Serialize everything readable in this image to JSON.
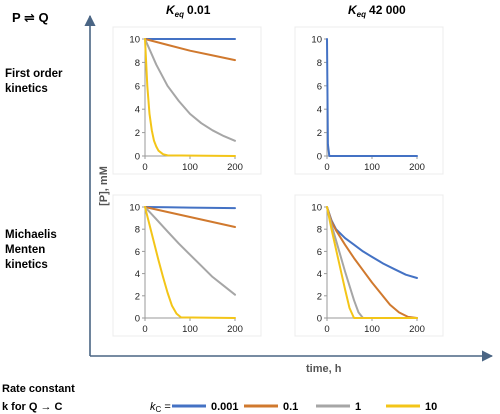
{
  "title": "P ⇌ Q",
  "column_headers": [
    {
      "prefix": "K",
      "sub": "eq",
      "value": "0.01"
    },
    {
      "prefix": "K",
      "sub": "eq",
      "value": "42 000"
    }
  ],
  "row_labels": [
    [
      "First order",
      "kinetics"
    ],
    [
      "Michaelis",
      "Menten",
      "kinetics"
    ]
  ],
  "y_axis_label": "[P], mM",
  "x_axis_label": "time, h",
  "footer": {
    "line1": "Rate constant",
    "line2": "k for Q → C",
    "kc_label_prefix": "k",
    "kc_label_sub": "C",
    "kc_label_suffix": " ="
  },
  "colors": {
    "kc_0.001": "#4472c4",
    "kc_0.1": "#d0792e",
    "kc_1": "#a6a6a6",
    "kc_10": "#f3c518",
    "axis_arrow": "#4a6584",
    "panel_axis": "#9a9a9a"
  },
  "chart_data": [
    {
      "type": "line",
      "panel": "first-order-keq-0.01",
      "xlim": [
        0,
        200
      ],
      "ylim": [
        0,
        10
      ],
      "xticks": [
        0,
        100,
        200
      ],
      "yticks": [
        0,
        2,
        4,
        6,
        8,
        10
      ],
      "series": [
        {
          "name": "0.001",
          "x": [
            0,
            50,
            100,
            150,
            200
          ],
          "values": [
            10,
            10,
            10,
            10,
            10
          ]
        },
        {
          "name": "0.1",
          "x": [
            0,
            50,
            100,
            150,
            200
          ],
          "values": [
            10,
            9.5,
            9.0,
            8.6,
            8.2
          ]
        },
        {
          "name": "1",
          "x": [
            0,
            25,
            50,
            75,
            100,
            125,
            150,
            175,
            200
          ],
          "values": [
            10,
            7.8,
            6.0,
            4.7,
            3.6,
            2.8,
            2.2,
            1.7,
            1.3
          ]
        },
        {
          "name": "10",
          "x": [
            0,
            5,
            10,
            15,
            20,
            25,
            30,
            40,
            50,
            200
          ],
          "values": [
            10,
            6.0,
            3.6,
            2.2,
            1.3,
            0.8,
            0.45,
            0.15,
            0.05,
            0
          ]
        }
      ]
    },
    {
      "type": "line",
      "panel": "first-order-keq-42000",
      "xlim": [
        0,
        200
      ],
      "ylim": [
        0,
        10
      ],
      "xticks": [
        0,
        100,
        200
      ],
      "yticks": [
        0,
        2,
        4,
        6,
        8,
        10
      ],
      "series": [
        {
          "name": "0.001",
          "x": [
            0,
            2,
            5,
            200
          ],
          "values": [
            10,
            1,
            0,
            0
          ]
        }
      ]
    },
    {
      "type": "line",
      "panel": "michaelis-menten-keq-0.01",
      "xlim": [
        0,
        200
      ],
      "ylim": [
        0,
        10
      ],
      "xticks": [
        0,
        100,
        200
      ],
      "yticks": [
        0,
        2,
        4,
        6,
        8,
        10
      ],
      "series": [
        {
          "name": "0.001",
          "x": [
            0,
            50,
            100,
            150,
            200
          ],
          "values": [
            10,
            9.97,
            9.95,
            9.92,
            9.9
          ]
        },
        {
          "name": "0.1",
          "x": [
            0,
            50,
            100,
            150,
            200
          ],
          "values": [
            10,
            9.55,
            9.1,
            8.65,
            8.2
          ]
        },
        {
          "name": "1",
          "x": [
            0,
            25,
            50,
            75,
            100,
            125,
            150,
            175,
            200
          ],
          "values": [
            10,
            8.9,
            7.8,
            6.7,
            5.7,
            4.7,
            3.7,
            2.9,
            2.1
          ]
        },
        {
          "name": "10",
          "x": [
            0,
            10,
            20,
            30,
            40,
            50,
            60,
            70,
            80,
            200
          ],
          "values": [
            10,
            8.4,
            6.8,
            5.2,
            3.7,
            2.3,
            1.1,
            0.4,
            0.05,
            0
          ]
        }
      ]
    },
    {
      "type": "line",
      "panel": "michaelis-menten-keq-42000",
      "xlim": [
        0,
        200
      ],
      "ylim": [
        0,
        10
      ],
      "xticks": [
        0,
        100,
        200
      ],
      "yticks": [
        0,
        2,
        4,
        6,
        8,
        10
      ],
      "series": [
        {
          "name": "0.001",
          "x": [
            0,
            10,
            20,
            40,
            60,
            80,
            100,
            125,
            150,
            175,
            200
          ],
          "values": [
            10,
            8.8,
            8.0,
            7.2,
            6.6,
            6.0,
            5.5,
            4.9,
            4.4,
            3.9,
            3.6
          ]
        },
        {
          "name": "0.1",
          "x": [
            0,
            10,
            20,
            40,
            60,
            80,
            100,
            120,
            140,
            160,
            180,
            200
          ],
          "values": [
            10,
            8.7,
            7.9,
            6.6,
            5.4,
            4.3,
            3.2,
            2.2,
            1.2,
            0.5,
            0.1,
            0
          ]
        },
        {
          "name": "1",
          "x": [
            0,
            10,
            20,
            30,
            40,
            50,
            60,
            70,
            80,
            200
          ],
          "values": [
            10,
            8.4,
            7.0,
            5.6,
            4.2,
            2.9,
            1.6,
            0.5,
            0,
            0
          ]
        },
        {
          "name": "10",
          "x": [
            0,
            10,
            20,
            30,
            40,
            50,
            60,
            200
          ],
          "values": [
            10,
            8.0,
            6.2,
            4.4,
            2.6,
            0.9,
            0,
            0
          ]
        }
      ]
    }
  ],
  "legend": [
    {
      "label": "0.001",
      "color_key": "kc_0.001"
    },
    {
      "label": "0.1",
      "color_key": "kc_0.1"
    },
    {
      "label": "1",
      "color_key": "kc_1"
    },
    {
      "label": "10",
      "color_key": "kc_10"
    }
  ]
}
